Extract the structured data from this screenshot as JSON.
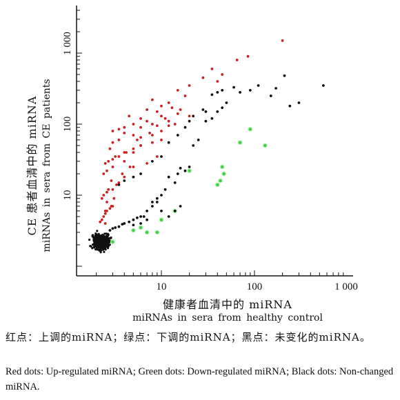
{
  "chart_data": {
    "type": "scatter",
    "xscale": "log",
    "yscale": "log",
    "xlim": [
      1,
      1000
    ],
    "ylim": [
      1,
      2000
    ],
    "xticks": [
      10,
      100,
      1000
    ],
    "xtick_labels": [
      "10",
      "100",
      "1 000"
    ],
    "yticks": [
      10,
      100,
      1000
    ],
    "ytick_labels": [
      "10",
      "100",
      "1 000"
    ],
    "xlabel": "健康者血清中的 miRNA",
    "xlabel_en": "miRNAs in sera from healthy control",
    "ylabel": "CE 患者血清中的 miRNA",
    "ylabel_en": "miRNAs in sera from CE patients",
    "grid": false,
    "series": [
      {
        "name": "Up-regulated miRNA",
        "color": "#cc1f1f",
        "x": [
          200,
          85,
          65,
          45,
          35,
          28,
          40,
          20,
          18,
          15,
          12,
          10,
          9,
          8,
          7,
          6,
          5,
          4.5,
          4,
          3.5,
          3,
          15,
          12,
          10,
          8,
          6,
          5,
          4,
          3.5,
          3,
          2.8,
          6,
          5,
          4,
          3.5,
          3,
          2.7,
          2.5,
          10,
          8,
          6,
          5,
          4,
          3,
          2.6,
          2.4,
          4,
          3.5,
          3,
          2.6,
          2.4,
          2.3,
          3,
          2.8,
          2.6,
          2.5,
          2.4,
          2.3,
          2.2,
          2.5,
          7,
          9,
          11,
          13,
          16,
          20,
          6,
          8,
          10,
          12,
          14,
          5,
          7,
          9,
          3.2,
          4.2,
          5.5,
          7.5,
          2.9,
          3.8,
          2.7,
          3.3,
          4.6,
          2.6,
          3.1,
          2.5,
          2.9
        ],
        "y": [
          1500,
          900,
          800,
          500,
          600,
          450,
          400,
          350,
          250,
          300,
          200,
          180,
          150,
          220,
          160,
          120,
          100,
          130,
          90,
          85,
          80,
          140,
          110,
          130,
          100,
          90,
          70,
          75,
          60,
          55,
          45,
          50,
          45,
          40,
          35,
          32,
          30,
          28,
          60,
          55,
          50,
          40,
          30,
          25,
          22,
          20,
          18,
          15,
          12,
          11,
          10,
          9,
          7,
          6.5,
          6,
          5.5,
          5,
          4.5,
          4.2,
          4,
          110,
          95,
          120,
          170,
          160,
          130,
          65,
          70,
          80,
          95,
          100,
          25,
          28,
          35,
          35,
          40,
          60,
          75,
          16,
          20,
          12,
          14,
          25,
          8,
          9,
          6,
          7
        ]
      },
      {
        "name": "Down-regulated miRNA",
        "color": "#3fcf3f",
        "x": [
          90,
          70,
          130,
          45,
          47,
          43,
          40,
          20,
          14,
          10,
          9,
          7,
          6,
          5,
          3
        ],
        "y": [
          85,
          55,
          50,
          25,
          20,
          16,
          14,
          22,
          6,
          4.5,
          3,
          3,
          3.5,
          3.2,
          2.2
        ]
      },
      {
        "name": "Non-changed miRNA",
        "color": "#111111",
        "x": [
          550,
          300,
          240,
          210,
          170,
          150,
          110,
          90,
          70,
          60,
          50,
          45,
          40,
          35,
          30,
          28,
          25,
          22,
          20,
          18,
          16,
          15,
          14,
          12,
          11,
          10,
          9,
          8,
          7,
          6.5,
          6,
          5.5,
          5,
          4.5,
          4,
          3.8,
          3.5,
          3.2,
          3,
          2.8,
          45,
          40,
          35,
          30,
          22,
          20,
          18,
          15,
          12,
          10,
          8,
          6,
          5,
          4,
          3.5,
          8,
          10,
          12,
          14,
          16,
          9,
          7,
          6,
          5
        ],
        "y": [
          350,
          200,
          180,
          480,
          320,
          250,
          350,
          300,
          280,
          330,
          200,
          170,
          150,
          120,
          110,
          160,
          60,
          50,
          25,
          22,
          24,
          20,
          15,
          18,
          12,
          10,
          8,
          7,
          6,
          5,
          5,
          4.8,
          4.5,
          4.2,
          4,
          3.9,
          3.6,
          3.5,
          3.4,
          3.2,
          300,
          280,
          260,
          150,
          130,
          110,
          90,
          70,
          55,
          35,
          30,
          20,
          18,
          16,
          14,
          8,
          6,
          5,
          6,
          7,
          9,
          4.5,
          4,
          3.8
        ]
      }
    ],
    "black_cluster_center": [
      2.3,
      2.2
    ],
    "black_cluster_count": 420
  },
  "captions": {
    "cn": "红点：上调的miRNA；绿点：下调的miRNA；黑点：未变化的miRNA。",
    "en": "Red dots: Up-regulated miRNA; Green dots: Down-regulated miRNA; Black dots: Non-changed miRNA."
  }
}
